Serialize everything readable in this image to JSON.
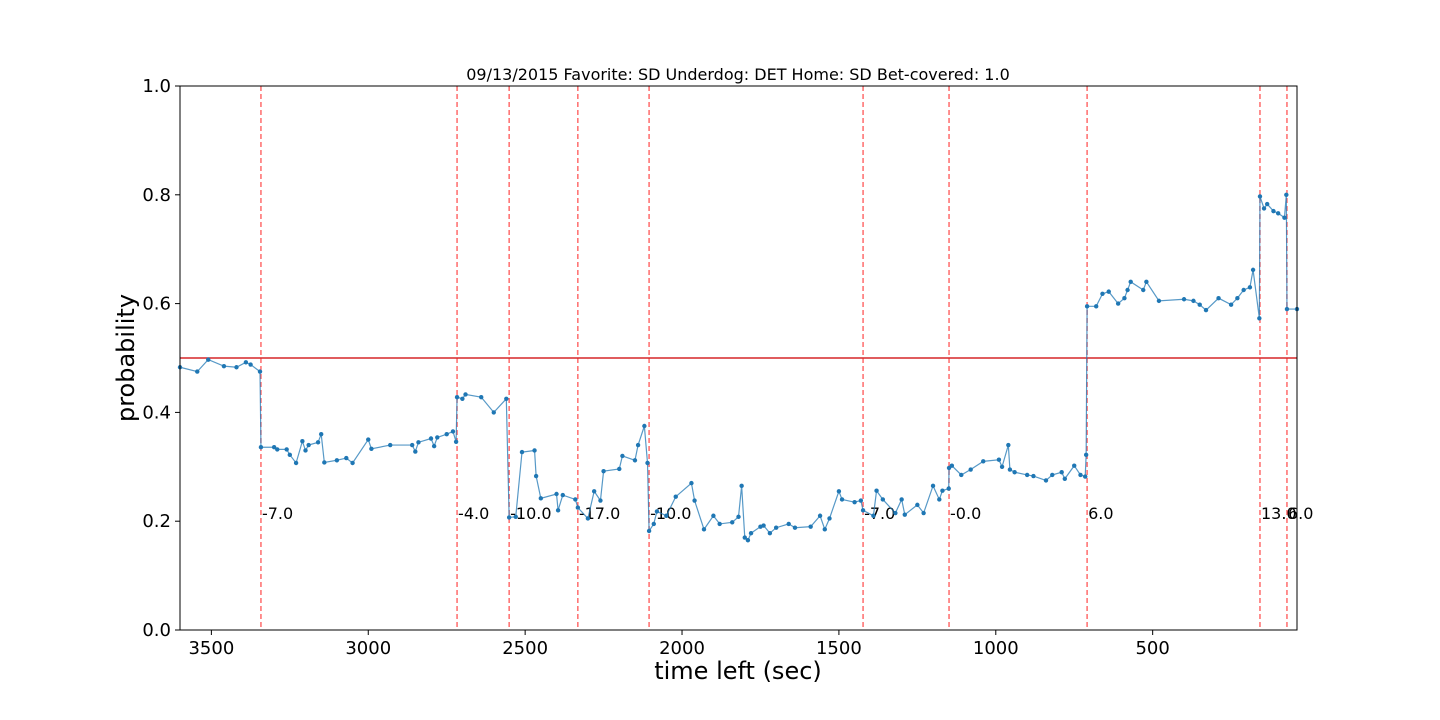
{
  "chart_data": {
    "type": "line",
    "title": "09/13/2015 Favorite: SD Underdog: DET Home: SD Bet-covered: 1.0",
    "x_label": "time left (sec)",
    "y_label": "probability",
    "xlim": [
      3600,
      40
    ],
    "ylim": [
      0,
      1
    ],
    "xticks": [
      3500,
      3000,
      2500,
      2000,
      1500,
      1000,
      500
    ],
    "yticks": [
      {
        "value": 0,
        "label": "0.0"
      },
      {
        "value": 0.2,
        "label": "0.2"
      },
      {
        "value": 0.4,
        "label": "0.4"
      },
      {
        "value": 0.6,
        "label": "0.6"
      },
      {
        "value": 0.8,
        "label": "0.8"
      },
      {
        "value": 1,
        "label": "1.0"
      }
    ],
    "hline": {
      "y": 0.5,
      "color": "#d62728"
    },
    "vlines": [
      {
        "x": 3342,
        "label": "-7.0",
        "y": 0.2
      },
      {
        "x": 2717,
        "label": "-4.0",
        "y": 0.2
      },
      {
        "x": 2551,
        "label": "-10.0",
        "y": 0.2
      },
      {
        "x": 2332,
        "label": "-17.0",
        "y": 0.2
      },
      {
        "x": 2105,
        "label": "-10.0",
        "y": 0.2
      },
      {
        "x": 1423,
        "label": "-7.0",
        "y": 0.2
      },
      {
        "x": 1149,
        "label": "-0.0",
        "y": 0.2
      },
      {
        "x": 709,
        "label": "6.0",
        "y": 0.2
      },
      {
        "x": 158,
        "label": "13.0",
        "y": 0.2
      },
      {
        "x": 72,
        "label": "6.0",
        "y": 0.2
      }
    ],
    "vline_color": "#ff5555",
    "series": [
      {
        "color": "#1f77b4",
        "x": [
          3600,
          3545,
          3510,
          3460,
          3420,
          3390,
          3375,
          3345,
          3342,
          3300,
          3290,
          3260,
          3250,
          3230,
          3210,
          3200,
          3190,
          3160,
          3150,
          3140,
          3100,
          3070,
          3050,
          3000,
          2990,
          2930,
          2860,
          2850,
          2840,
          2800,
          2790,
          2780,
          2750,
          2730,
          2720,
          2717,
          2700,
          2690,
          2640,
          2600,
          2560,
          2551,
          2530,
          2510,
          2470,
          2465,
          2450,
          2400,
          2395,
          2380,
          2340,
          2332,
          2300,
          2280,
          2260,
          2250,
          2200,
          2190,
          2150,
          2140,
          2120,
          2110,
          2105,
          2090,
          2080,
          2050,
          2020,
          1970,
          1960,
          1930,
          1900,
          1880,
          1840,
          1820,
          1810,
          1800,
          1790,
          1780,
          1750,
          1740,
          1720,
          1700,
          1660,
          1640,
          1590,
          1560,
          1545,
          1530,
          1500,
          1490,
          1450,
          1430,
          1423,
          1390,
          1380,
          1360,
          1320,
          1300,
          1290,
          1250,
          1230,
          1200,
          1180,
          1170,
          1150,
          1149,
          1140,
          1110,
          1080,
          1040,
          990,
          980,
          960,
          955,
          940,
          900,
          880,
          840,
          820,
          790,
          780,
          750,
          730,
          715,
          712,
          709,
          680,
          660,
          640,
          610,
          590,
          580,
          570,
          530,
          520,
          480,
          400,
          370,
          350,
          330,
          290,
          250,
          230,
          210,
          190,
          180,
          160,
          158,
          145,
          135,
          115,
          100,
          80,
          74,
          72,
          40
        ],
        "values": [
          0.483,
          0.475,
          0.497,
          0.485,
          0.483,
          0.492,
          0.488,
          0.475,
          0.336,
          0.336,
          0.332,
          0.332,
          0.322,
          0.307,
          0.347,
          0.33,
          0.34,
          0.345,
          0.36,
          0.308,
          0.312,
          0.316,
          0.307,
          0.35,
          0.333,
          0.34,
          0.34,
          0.328,
          0.345,
          0.352,
          0.338,
          0.354,
          0.36,
          0.365,
          0.346,
          0.428,
          0.425,
          0.433,
          0.428,
          0.4,
          0.425,
          0.207,
          0.208,
          0.327,
          0.33,
          0.283,
          0.242,
          0.25,
          0.22,
          0.248,
          0.24,
          0.225,
          0.205,
          0.255,
          0.238,
          0.292,
          0.296,
          0.32,
          0.312,
          0.34,
          0.375,
          0.307,
          0.182,
          0.195,
          0.218,
          0.21,
          0.245,
          0.27,
          0.238,
          0.185,
          0.21,
          0.195,
          0.198,
          0.208,
          0.265,
          0.17,
          0.165,
          0.178,
          0.19,
          0.192,
          0.178,
          0.188,
          0.195,
          0.188,
          0.19,
          0.21,
          0.185,
          0.205,
          0.255,
          0.24,
          0.235,
          0.238,
          0.22,
          0.21,
          0.256,
          0.24,
          0.215,
          0.24,
          0.212,
          0.23,
          0.215,
          0.265,
          0.24,
          0.256,
          0.26,
          0.298,
          0.302,
          0.285,
          0.295,
          0.31,
          0.313,
          0.3,
          0.34,
          0.295,
          0.29,
          0.285,
          0.283,
          0.275,
          0.285,
          0.29,
          0.278,
          0.302,
          0.285,
          0.282,
          0.322,
          0.595,
          0.595,
          0.618,
          0.622,
          0.6,
          0.61,
          0.625,
          0.64,
          0.625,
          0.64,
          0.605,
          0.608,
          0.605,
          0.598,
          0.588,
          0.61,
          0.598,
          0.61,
          0.625,
          0.63,
          0.662,
          0.573,
          0.797,
          0.775,
          0.783,
          0.77,
          0.766,
          0.758,
          0.8,
          0.59,
          0.59
        ]
      }
    ]
  }
}
